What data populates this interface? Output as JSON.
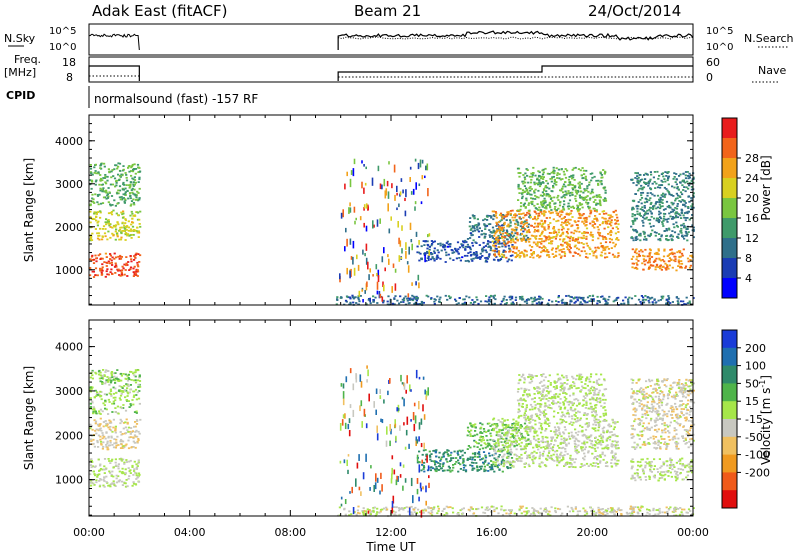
{
  "header": {
    "station": "Adak East (fitACF)",
    "beam": "Beam 21",
    "date": "24/Oct/2014"
  },
  "strip": {
    "nsky_label": "N.Sky",
    "nsky_ticks": [
      "10^5",
      "10^0"
    ],
    "nsearch_label": "N.Search",
    "nsearch_ticks": [
      "10^5",
      "10^0"
    ],
    "freq_label": "Freq.",
    "freq_unit": "[MHz]",
    "freq_ticks": [
      "18",
      "8"
    ],
    "nave_label": "Nave",
    "nave_ticks": [
      "60",
      "0"
    ],
    "cpid_label": "CPID",
    "cpid_text": "normalsound (fast) -157 RF"
  },
  "colors": {
    "power_scale": [
      "#0000ff",
      "#1a3cb4",
      "#2f6f8a",
      "#3f9a6a",
      "#79c640",
      "#d8d020",
      "#f2a21a",
      "#f2641a",
      "#e81c1c"
    ],
    "velocity_scale": [
      "#1a3cd8",
      "#1f6fb0",
      "#2f8a6a",
      "#4fb44a",
      "#a6e64a",
      "#c8c8c0",
      "#f0c060",
      "#f09a20",
      "#f05a1a",
      "#e00e0e"
    ]
  },
  "chart_data": [
    {
      "type": "heatmap",
      "panel": "power",
      "ylabel": "Slant Range [km]",
      "yticks": [
        "1000",
        "2000",
        "3000",
        "4000"
      ],
      "ylim": [
        180,
        4600
      ],
      "xticks": [
        "00:00",
        "04:00",
        "08:00",
        "12:00",
        "16:00",
        "20:00",
        "00:00"
      ],
      "xlim_hours": [
        0,
        24
      ],
      "colorbar": {
        "label": "Power [dB]",
        "ticks": [
          "4",
          "8",
          "12",
          "16",
          "20",
          "24",
          "28"
        ],
        "range": [
          0,
          30
        ]
      },
      "regions": [
        {
          "t": [
            0.0,
            2.0
          ],
          "r": [
            850,
            1400
          ],
          "value": 26
        },
        {
          "t": [
            0.0,
            2.0
          ],
          "r": [
            1700,
            2400
          ],
          "value": 18
        },
        {
          "t": [
            0.0,
            2.0
          ],
          "r": [
            2500,
            3500
          ],
          "value": 13
        },
        {
          "t": [
            13.0,
            16.8
          ],
          "r": [
            1200,
            1700
          ],
          "value": 6
        },
        {
          "t": [
            15.0,
            17.5
          ],
          "r": [
            1700,
            2300
          ],
          "value": 9
        },
        {
          "t": [
            16.0,
            21.0
          ],
          "r": [
            1300,
            2400
          ],
          "value": 22
        },
        {
          "t": [
            17.0,
            20.5
          ],
          "r": [
            2400,
            3400
          ],
          "value": 14
        },
        {
          "t": [
            21.5,
            24.0
          ],
          "r": [
            1000,
            1500
          ],
          "value": 23
        },
        {
          "t": [
            21.5,
            24.0
          ],
          "r": [
            1700,
            3300
          ],
          "value": 10
        },
        {
          "t": [
            9.8,
            24.0
          ],
          "r": [
            200,
            420
          ],
          "value": 8
        }
      ]
    },
    {
      "type": "heatmap",
      "panel": "velocity",
      "ylabel": "Slant Range [km]",
      "yticks": [
        "1000",
        "2000",
        "3000",
        "4000"
      ],
      "ylim": [
        180,
        4600
      ],
      "xticks": [
        "00:00",
        "04:00",
        "08:00",
        "12:00",
        "16:00",
        "20:00",
        "00:00"
      ],
      "xlabel": "Time UT",
      "xlim_hours": [
        0,
        24
      ],
      "colorbar": {
        "label": "Velocity [m s^-1]",
        "ticks": [
          "200",
          "100",
          "50",
          "15",
          "-15",
          "-50",
          "-100",
          "-200"
        ],
        "range": [
          -250,
          250
        ]
      },
      "regions": [
        {
          "t": [
            0.0,
            2.0
          ],
          "r": [
            850,
            1500
          ],
          "value": 0
        },
        {
          "t": [
            0.0,
            2.0
          ],
          "r": [
            1700,
            2400
          ],
          "value": -40
        },
        {
          "t": [
            0.0,
            2.0
          ],
          "r": [
            2500,
            3500
          ],
          "value": 30
        },
        {
          "t": [
            13.0,
            16.8
          ],
          "r": [
            1200,
            1700
          ],
          "value": 120
        },
        {
          "t": [
            15.0,
            17.5
          ],
          "r": [
            1700,
            2300
          ],
          "value": 60
        },
        {
          "t": [
            16.0,
            21.0
          ],
          "r": [
            1300,
            2400
          ],
          "value": 0
        },
        {
          "t": [
            17.0,
            20.5
          ],
          "r": [
            2400,
            3400
          ],
          "value": 5
        },
        {
          "t": [
            21.5,
            24.0
          ],
          "r": [
            1000,
            1500
          ],
          "value": 0
        },
        {
          "t": [
            21.5,
            24.0
          ],
          "r": [
            1700,
            3300
          ],
          "value": -30
        },
        {
          "t": [
            9.8,
            24.0
          ],
          "r": [
            200,
            420
          ],
          "value": -20
        }
      ]
    }
  ]
}
